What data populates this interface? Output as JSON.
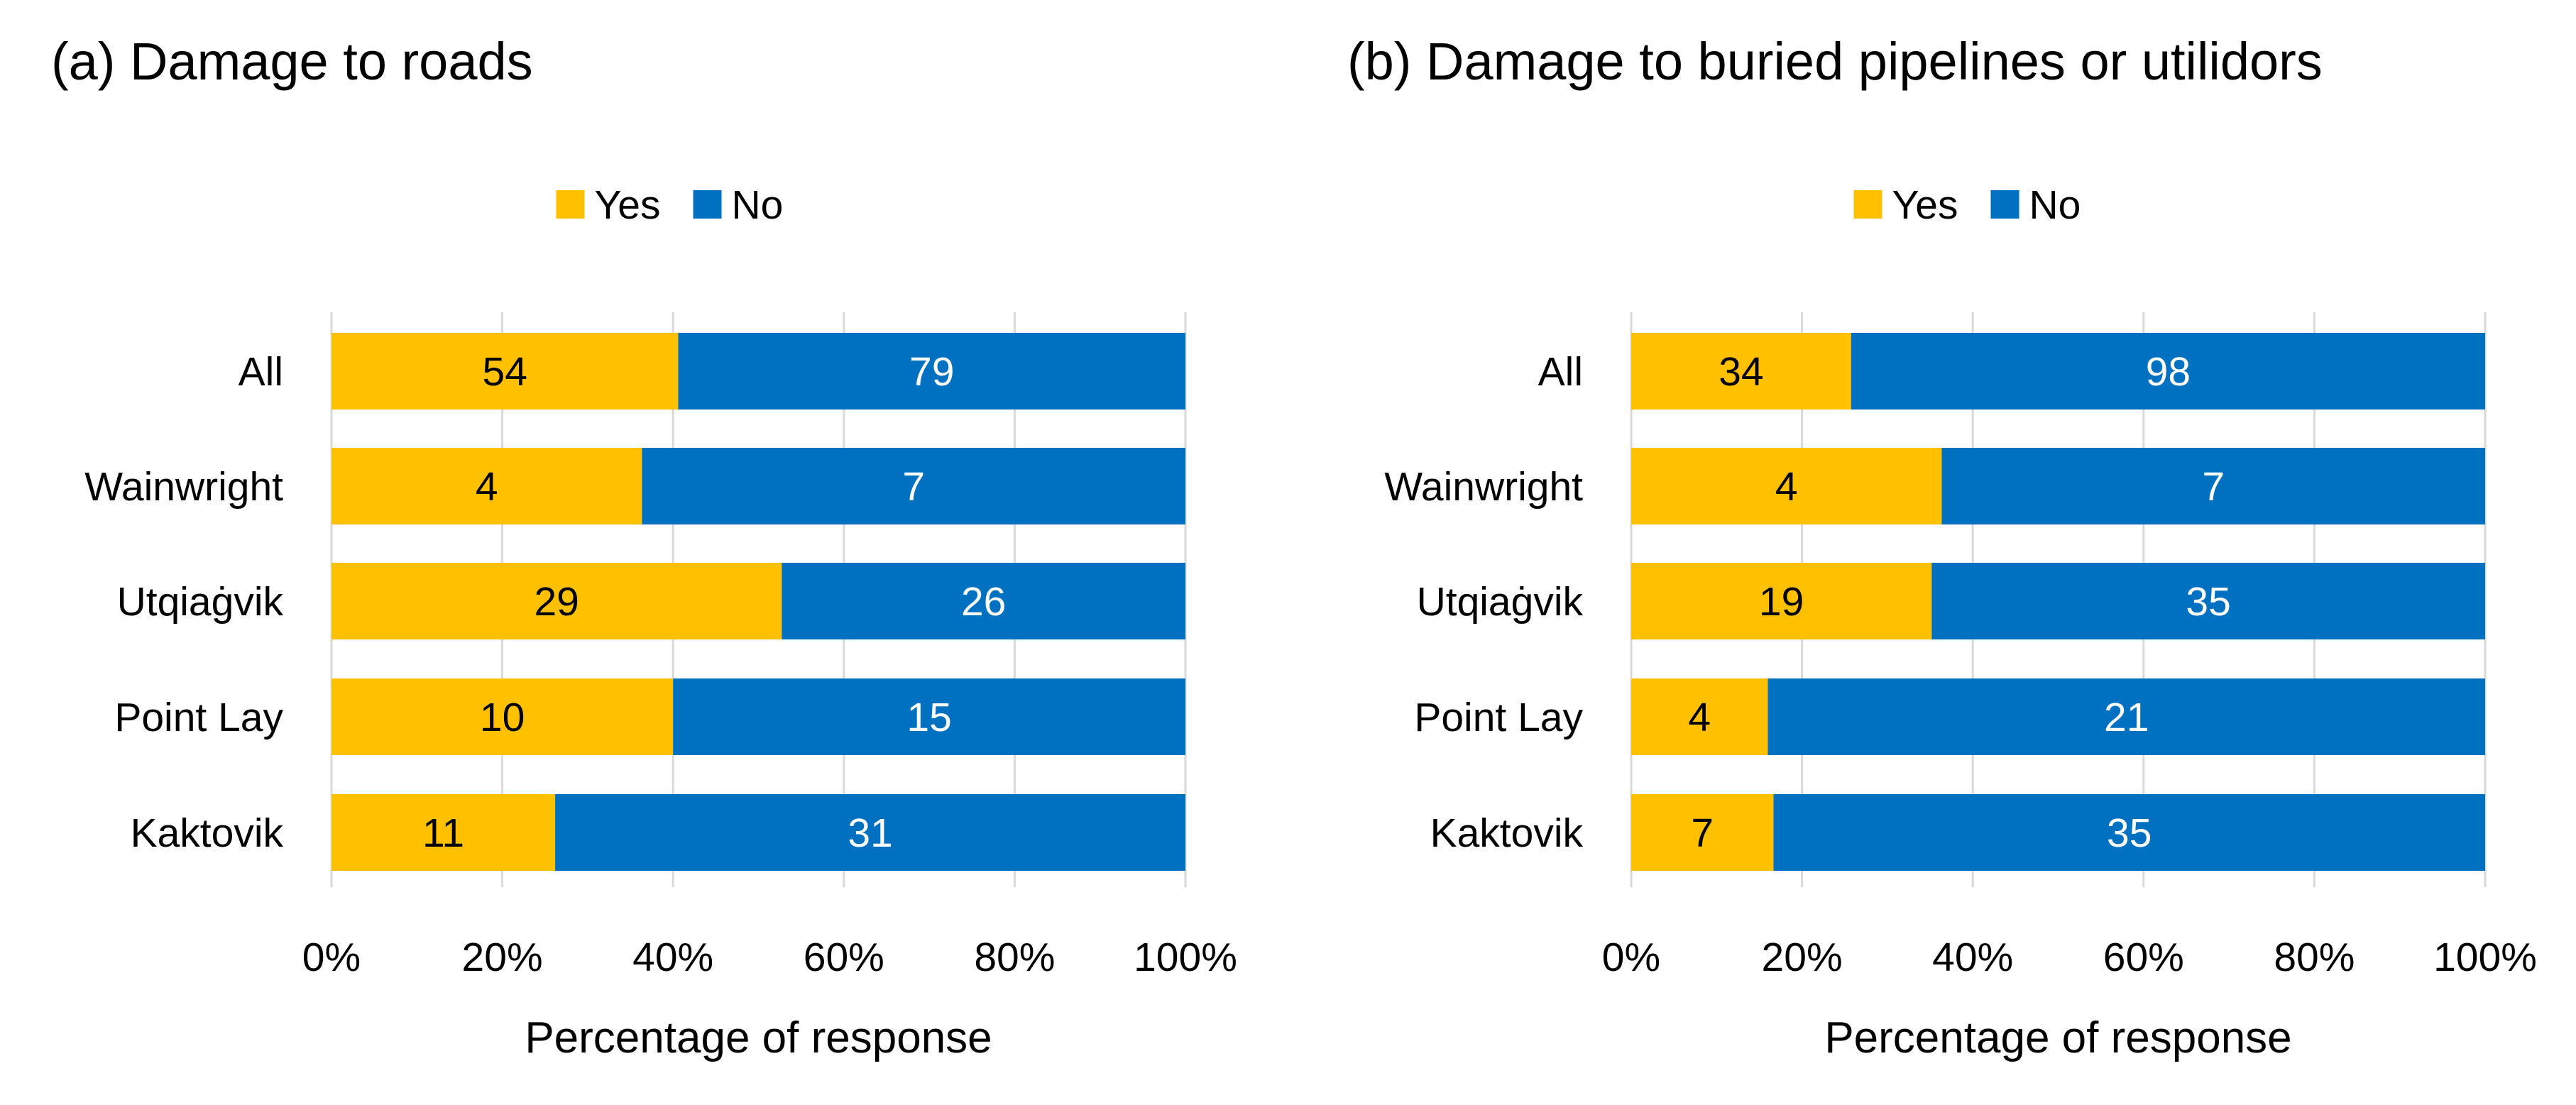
{
  "chart_data": [
    {
      "type": "bar",
      "orientation": "horizontal",
      "stacked": "percent",
      "title": "(a) Damage to roads",
      "xlabel": "Percentage of response",
      "ylabel": "",
      "xlim": [
        0,
        100
      ],
      "xticks": [
        "0%",
        "20%",
        "40%",
        "60%",
        "80%",
        "100%"
      ],
      "categories": [
        "All",
        "Wainwright",
        "Utqiaġvik",
        "Point Lay",
        "Kaktovik"
      ],
      "series": [
        {
          "name": "Yes",
          "color": "#FFC000",
          "values": [
            54,
            4,
            29,
            10,
            11
          ]
        },
        {
          "name": "No",
          "color": "#0070C0",
          "values": [
            79,
            7,
            26,
            15,
            31
          ]
        }
      ],
      "legend": "top-center",
      "grid": "vertical"
    },
    {
      "type": "bar",
      "orientation": "horizontal",
      "stacked": "percent",
      "title": "(b) Damage to buried pipelines or utilidors",
      "xlabel": "Percentage of response",
      "ylabel": "",
      "xlim": [
        0,
        100
      ],
      "xticks": [
        "0%",
        "20%",
        "40%",
        "60%",
        "80%",
        "100%"
      ],
      "categories": [
        "All",
        "Wainwright",
        "Utqiaġvik",
        "Point Lay",
        "Kaktovik"
      ],
      "series": [
        {
          "name": "Yes",
          "color": "#FFC000",
          "values": [
            34,
            4,
            19,
            4,
            7
          ]
        },
        {
          "name": "No",
          "color": "#0070C0",
          "values": [
            98,
            7,
            35,
            21,
            35
          ]
        }
      ],
      "legend": "top-center",
      "grid": "vertical"
    }
  ],
  "colors": {
    "yes": "#FFC000",
    "no": "#0070C0",
    "grid": "#D9D9D9",
    "yes_label": "#000000",
    "no_label": "#FFFFFF"
  }
}
